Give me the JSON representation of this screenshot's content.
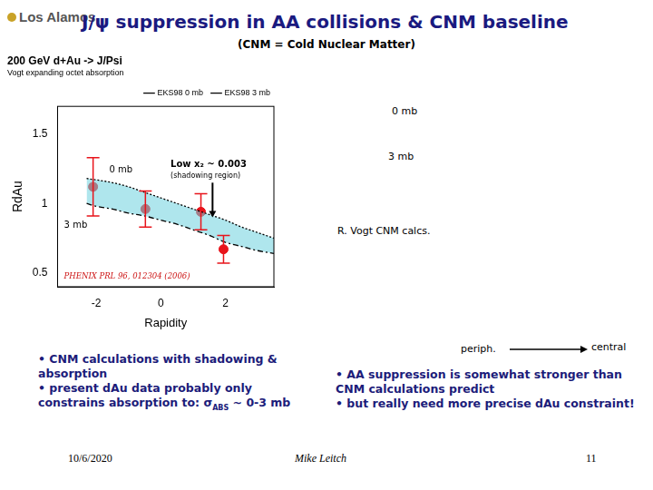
{
  "slide": {
    "logo": "Los Alamos",
    "title": "J/ψ suppression in AA collisions & CNM baseline",
    "subtitle": "(CNM = Cold Nuclear Matter)",
    "notes": [
      "0 mb",
      "3 mb",
      "R. Vogt CNM calcs."
    ],
    "left_bullets": [
      [
        {
          "text": "• CNM calculations with shadowing & absorption"
        }
      ],
      [
        {
          "text": "• present dAu data probably only constrains absorption to: σ"
        },
        {
          "text": "ABS",
          "sub": true
        },
        {
          "text": " ~ 0-3 mb"
        }
      ]
    ],
    "periph": "periph.",
    "central": "central",
    "right_bullets": [
      [
        {
          "text": "• AA suppression is somewhat stronger than CNM calculations predict"
        }
      ],
      [
        {
          "text": "• but really need more precise dAu constraint!"
        }
      ]
    ],
    "footer": {
      "date": "10/6/2020",
      "author": "Mike Leitch",
      "page": "11"
    }
  },
  "chart_data": {
    "type": "line",
    "title": "200 GeV d+Au -> J/Psi",
    "subtitle": "Vogt expanding octet absorption",
    "x_label": "Rapidity",
    "y_label": "RdAu",
    "xlim": [
      -3.2,
      3.5
    ],
    "xticks": [
      -2,
      0,
      2
    ],
    "ylim": [
      0.4,
      1.7
    ],
    "yticks": [
      0.5,
      1,
      1.5
    ],
    "grid": false,
    "legend": "top-right",
    "series": [
      {
        "name": "EKS98 0 mb",
        "color": "#000000",
        "line_style": "dotted",
        "x": [
          -2.3,
          -2,
          -1.5,
          -1,
          -0.5,
          0,
          0.5,
          1,
          1.5,
          2,
          2.5,
          3,
          3.5
        ],
        "values": [
          1.18,
          1.17,
          1.15,
          1.12,
          1.08,
          1.04,
          1.0,
          0.96,
          0.92,
          0.88,
          0.83,
          0.79,
          0.75
        ]
      },
      {
        "name": "EKS98 3 mb",
        "color": "#000000",
        "line_style": "dashdot",
        "x": [
          -2.3,
          -2,
          -1.5,
          -1,
          -0.5,
          0,
          0.5,
          1,
          1.5,
          2,
          2.5,
          3,
          3.5
        ],
        "values": [
          1.0,
          0.98,
          0.96,
          0.93,
          0.91,
          0.88,
          0.85,
          0.81,
          0.77,
          0.72,
          0.69,
          0.66,
          0.64
        ]
      }
    ],
    "points": {
      "type": "scatter",
      "color": "#e8141b",
      "marker": "circle",
      "x": [
        -2.1,
        -0.48,
        1.24,
        1.94
      ],
      "values": [
        1.12,
        0.96,
        0.94,
        0.67
      ],
      "errors": [
        0.21,
        0.13,
        0.13,
        0.1
      ]
    },
    "annotations": [
      "0 mb",
      "3 mb",
      "Low x₂ ~ 0.003",
      "(shadowing region)",
      "PHENIX PRL 96, 012304 (2006)"
    ]
  }
}
